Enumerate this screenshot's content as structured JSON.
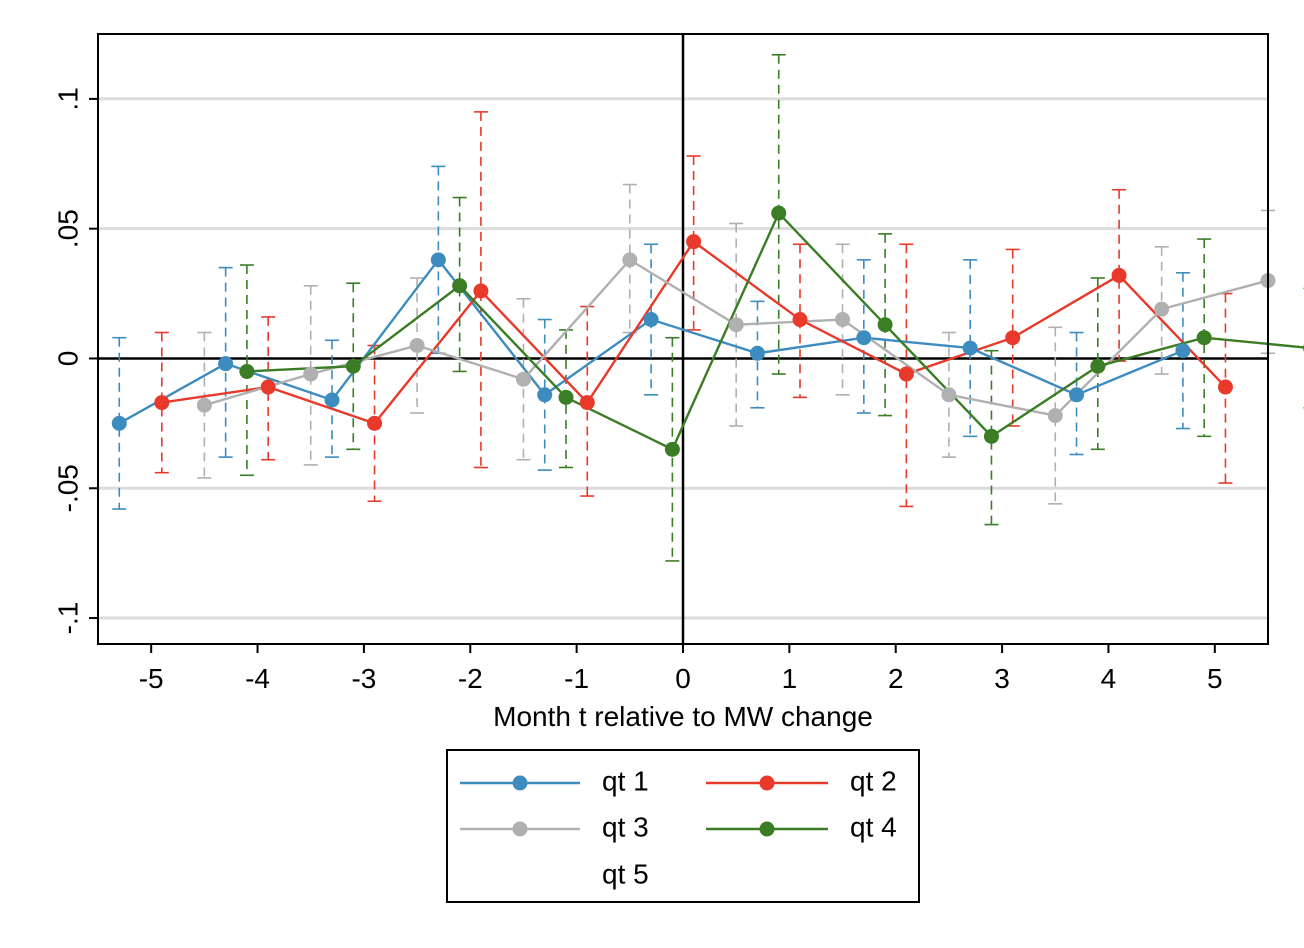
{
  "chart_data": {
    "type": "line",
    "title": "",
    "xlabel": "Month t relative to MW change",
    "ylabel": "",
    "xlim": [
      -5.5,
      5.5
    ],
    "ylim": [
      -0.11,
      0.125
    ],
    "x_ticks": [
      {
        "value": -5,
        "label": "-5"
      },
      {
        "value": -4,
        "label": "-4"
      },
      {
        "value": -3,
        "label": "-3"
      },
      {
        "value": -2,
        "label": "-2"
      },
      {
        "value": -1,
        "label": "-1"
      },
      {
        "value": 0,
        "label": "0"
      },
      {
        "value": 1,
        "label": "1"
      },
      {
        "value": 2,
        "label": "2"
      },
      {
        "value": 3,
        "label": "3"
      },
      {
        "value": 4,
        "label": "4"
      },
      {
        "value": 5,
        "label": "5"
      }
    ],
    "y_ticks": [
      {
        "value": -0.1,
        "label": "-.1"
      },
      {
        "value": -0.05,
        "label": "-.05"
      },
      {
        "value": 0,
        "label": "0"
      },
      {
        "value": 0.05,
        "label": ".05"
      },
      {
        "value": 0.1,
        "label": ".1"
      }
    ],
    "gridlines": "horizontal",
    "reference_lines": {
      "x": 0,
      "y": 0
    },
    "legend_position": "bottom",
    "series": [
      {
        "name": "qt 1",
        "color": "#3d8cbf",
        "x": [
          -5.3,
          -4.3,
          -3.3,
          -2.3,
          -1.3,
          -0.3,
          0.7,
          1.7,
          2.7,
          3.7,
          4.7
        ],
        "y": [
          -0.025,
          -0.002,
          -0.016,
          0.038,
          -0.014,
          0.015,
          0.002,
          0.008,
          0.004,
          -0.014,
          0.003
        ],
        "ci_low": [
          -0.058,
          -0.038,
          -0.038,
          0.002,
          -0.043,
          -0.014,
          -0.019,
          -0.021,
          -0.03,
          -0.037,
          -0.027
        ],
        "ci_high": [
          0.008,
          0.035,
          0.007,
          0.074,
          0.015,
          0.044,
          0.022,
          0.038,
          0.038,
          0.01,
          0.033
        ]
      },
      {
        "name": "qt 2",
        "color": "#e8392a",
        "x": [
          -4.9,
          -3.9,
          -2.9,
          -1.9,
          -0.9,
          0.1,
          1.1,
          2.1,
          3.1,
          4.1,
          5.1
        ],
        "y": [
          -0.017,
          -0.011,
          -0.025,
          0.026,
          -0.017,
          0.045,
          0.015,
          -0.006,
          0.008,
          0.032,
          -0.011
        ],
        "ci_low": [
          -0.044,
          -0.039,
          -0.055,
          -0.042,
          -0.053,
          0.011,
          -0.015,
          -0.057,
          -0.026,
          -0.001,
          -0.048
        ],
        "ci_high": [
          0.01,
          0.016,
          0.005,
          0.095,
          0.02,
          0.078,
          0.044,
          0.044,
          0.042,
          0.065,
          0.025
        ]
      },
      {
        "name": "qt 3",
        "color": "#b0b0b0",
        "x": [
          -4.5,
          -3.5,
          -2.5,
          -1.5,
          -0.5,
          0.5,
          1.5,
          2.5,
          3.5,
          4.5,
          5.5
        ],
        "y": [
          -0.018,
          -0.006,
          0.005,
          -0.008,
          0.038,
          0.013,
          0.015,
          -0.014,
          -0.022,
          0.019,
          0.03
        ],
        "ci_low": [
          -0.046,
          -0.041,
          -0.021,
          -0.039,
          0.01,
          -0.026,
          -0.014,
          -0.038,
          -0.056,
          -0.006,
          0.002
        ],
        "ci_high": [
          0.01,
          0.028,
          0.031,
          0.023,
          0.067,
          0.052,
          0.044,
          0.01,
          0.012,
          0.043,
          0.057
        ]
      },
      {
        "name": "qt 4",
        "color": "#3a7d25",
        "x": [
          -4.1,
          -3.1,
          -2.1,
          -1.1,
          -0.1,
          0.9,
          1.9,
          2.9,
          3.9,
          4.9,
          5.9
        ],
        "y": [
          -0.005,
          -0.003,
          0.028,
          -0.015,
          -0.035,
          0.056,
          0.013,
          -0.03,
          -0.003,
          0.008,
          0.004
        ],
        "ci_low": [
          -0.045,
          -0.035,
          -0.005,
          -0.042,
          -0.078,
          -0.006,
          -0.022,
          -0.064,
          -0.035,
          -0.03,
          -0.019
        ],
        "ci_high": [
          0.036,
          0.029,
          0.062,
          0.011,
          0.008,
          0.117,
          0.048,
          0.003,
          0.031,
          0.046,
          0.027
        ]
      },
      {
        "name": "qt 5",
        "color": "none",
        "x": [],
        "y": [],
        "ci_low": [],
        "ci_high": []
      }
    ]
  }
}
